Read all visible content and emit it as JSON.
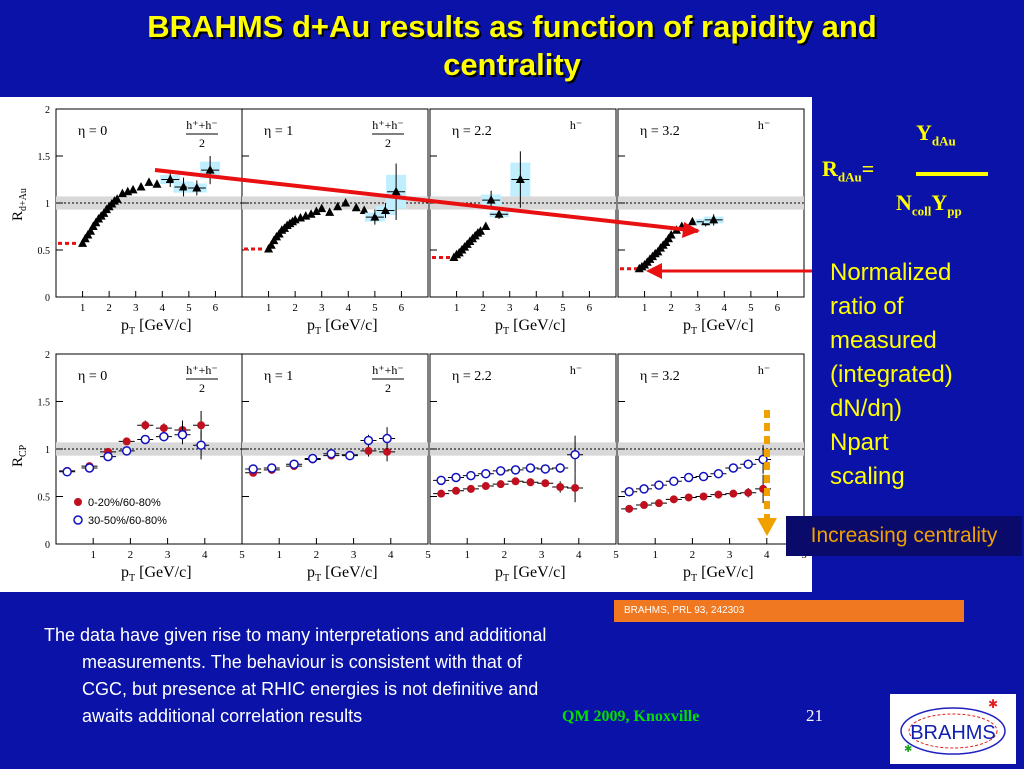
{
  "slide": {
    "title_line1": "BRAHMS d+Au results as function of rapidity and",
    "title_line2": "centrality",
    "formula": {
      "lhs": "R",
      "lhs_sub": "dAu",
      "equals": "=",
      "num": "Y",
      "num_sub": "dAu",
      "den1": "N",
      "den1_sub": "coll",
      "den2": "Y",
      "den2_sub": "pp"
    },
    "note_lines": [
      "Normalized",
      "ratio of",
      "measured",
      "(integrated)",
      "dN/dη)",
      "Npart",
      "scaling"
    ],
    "increasing": "Increasing centrality",
    "reference": "BRAHMS, PRL 93, 242303",
    "body_text": "The data have given rise to many  interpretations and additional measurements. The behaviour is consistent with that of CGC, but presence at RHIC energies is not definitive and awaits additional correlation results",
    "conference": "QM 2009, Knoxville",
    "page_number": "21",
    "logo_text": "BRAHMS"
  },
  "colors": {
    "background": "#0a12a8",
    "title": "#ffff00",
    "highlight": "#e81010",
    "arrow": "#f0a000",
    "central": "#c01020",
    "peripheral": "#1010c0",
    "band": "#bfefff"
  },
  "chart_data": [
    {
      "type": "scatter",
      "ylabel": "R",
      "ylabel_sub": "d+Au",
      "xlabel": "p",
      "xlabel_sub": "T",
      "xlabel_unit": "[GeV/c]",
      "xlim": [
        0,
        7
      ],
      "ylim": [
        0,
        2
      ],
      "xticks": [
        1,
        2,
        3,
        4,
        5,
        6
      ],
      "yticks": [
        0,
        0.5,
        1,
        1.5,
        2
      ],
      "panels": [
        {
          "eta": "η = 0",
          "species_num": "h⁺+h⁻",
          "species_den": "2",
          "norm_err": 0.03,
          "points": [
            [
              1.0,
              0.57
            ],
            [
              1.1,
              0.62
            ],
            [
              1.2,
              0.66
            ],
            [
              1.3,
              0.7
            ],
            [
              1.4,
              0.75
            ],
            [
              1.5,
              0.79
            ],
            [
              1.6,
              0.83
            ],
            [
              1.7,
              0.86
            ],
            [
              1.8,
              0.89
            ],
            [
              1.9,
              0.93
            ],
            [
              2.0,
              0.96
            ],
            [
              2.1,
              0.99
            ],
            [
              2.2,
              1.02
            ],
            [
              2.3,
              1.04
            ],
            [
              2.5,
              1.1
            ],
            [
              2.7,
              1.12
            ],
            [
              2.9,
              1.14
            ],
            [
              3.2,
              1.17
            ],
            [
              3.5,
              1.22
            ],
            [
              3.8,
              1.2
            ],
            [
              4.3,
              1.25
            ],
            [
              4.8,
              1.17
            ],
            [
              5.3,
              1.16
            ],
            [
              5.8,
              1.35
            ]
          ],
          "errors": [
            0,
            0,
            0,
            0,
            0,
            0,
            0,
            0,
            0,
            0,
            0,
            0,
            0,
            0,
            0,
            0,
            0,
            0,
            0,
            0,
            0.08,
            0.1,
            0.08,
            0.15
          ]
        },
        {
          "eta": "η = 1",
          "species_num": "h⁺+h⁻",
          "species_den": "2",
          "norm_err": 0.03,
          "points": [
            [
              1.0,
              0.51
            ],
            [
              1.1,
              0.55
            ],
            [
              1.2,
              0.6
            ],
            [
              1.3,
              0.64
            ],
            [
              1.4,
              0.67
            ],
            [
              1.5,
              0.71
            ],
            [
              1.6,
              0.73
            ],
            [
              1.7,
              0.76
            ],
            [
              1.8,
              0.78
            ],
            [
              1.9,
              0.8
            ],
            [
              2.0,
              0.82
            ],
            [
              2.2,
              0.84
            ],
            [
              2.4,
              0.86
            ],
            [
              2.6,
              0.88
            ],
            [
              2.8,
              0.91
            ],
            [
              3.0,
              0.94
            ],
            [
              3.3,
              0.9
            ],
            [
              3.6,
              0.96
            ],
            [
              3.9,
              1.0
            ],
            [
              4.3,
              0.95
            ],
            [
              4.6,
              0.92
            ],
            [
              5.0,
              0.85
            ],
            [
              5.4,
              0.92
            ],
            [
              5.8,
              1.12
            ]
          ],
          "errors": [
            0,
            0,
            0,
            0,
            0,
            0,
            0,
            0,
            0,
            0,
            0,
            0,
            0,
            0,
            0,
            0,
            0,
            0,
            0,
            0,
            0,
            0.08,
            0.08,
            0.3
          ]
        },
        {
          "eta": "η = 2.2",
          "species_num": "h⁻",
          "species_den": "",
          "norm_err": 0.03,
          "points": [
            [
              0.9,
              0.42
            ],
            [
              1.0,
              0.45
            ],
            [
              1.1,
              0.47
            ],
            [
              1.2,
              0.5
            ],
            [
              1.3,
              0.53
            ],
            [
              1.4,
              0.56
            ],
            [
              1.5,
              0.59
            ],
            [
              1.6,
              0.62
            ],
            [
              1.7,
              0.65
            ],
            [
              1.8,
              0.68
            ],
            [
              1.9,
              0.7
            ],
            [
              2.1,
              0.75
            ],
            [
              2.3,
              1.03
            ],
            [
              2.6,
              0.88
            ],
            [
              3.4,
              1.25
            ]
          ],
          "errors": [
            0,
            0,
            0,
            0,
            0,
            0,
            0,
            0,
            0,
            0,
            0,
            0,
            0.1,
            0.05,
            0.3
          ]
        },
        {
          "eta": "η = 3.2",
          "species_num": "h⁻",
          "species_den": "",
          "norm_err": 0.03,
          "points": [
            [
              0.8,
              0.3
            ],
            [
              0.9,
              0.32
            ],
            [
              1.0,
              0.34
            ],
            [
              1.1,
              0.37
            ],
            [
              1.2,
              0.4
            ],
            [
              1.3,
              0.43
            ],
            [
              1.4,
              0.46
            ],
            [
              1.5,
              0.48
            ],
            [
              1.6,
              0.52
            ],
            [
              1.7,
              0.55
            ],
            [
              1.8,
              0.58
            ],
            [
              1.9,
              0.62
            ],
            [
              2.0,
              0.66
            ],
            [
              2.2,
              0.71
            ],
            [
              2.4,
              0.75
            ],
            [
              2.8,
              0.8
            ],
            [
              3.3,
              0.8
            ],
            [
              3.6,
              0.82
            ]
          ],
          "errors": [
            0,
            0,
            0,
            0,
            0,
            0,
            0,
            0,
            0,
            0,
            0,
            0,
            0,
            0,
            0,
            0,
            0.05,
            0.06
          ]
        }
      ]
    },
    {
      "type": "scatter",
      "ylabel": "R",
      "ylabel_sub": "CP",
      "xlabel": "p",
      "xlabel_sub": "T",
      "xlabel_unit": "[GeV/c]",
      "xlim": [
        0,
        5
      ],
      "ylim": [
        0,
        2
      ],
      "xticks": [
        1,
        2,
        3,
        4,
        5
      ],
      "yticks": [
        0,
        0.5,
        1,
        1.5,
        2
      ],
      "legend": [
        "0-20%/60-80%",
        "30-50%/60-80%"
      ],
      "panels": [
        {
          "eta": "η = 0",
          "species_num": "h⁺+h⁻",
          "species_den": "2",
          "series": [
            {
              "name": "0-20%/60-80%",
              "values": [
                [
                  0.3,
                  0.77
                ],
                [
                  0.9,
                  0.82
                ],
                [
                  1.4,
                  0.97
                ],
                [
                  1.9,
                  1.08
                ],
                [
                  2.4,
                  1.25
                ],
                [
                  2.9,
                  1.22
                ],
                [
                  3.4,
                  1.2
                ],
                [
                  3.9,
                  1.25
                ]
              ],
              "errors": [
                0,
                0,
                0,
                0,
                0.05,
                0.05,
                0.1,
                0.15
              ]
            },
            {
              "name": "30-50%/60-80%",
              "values": [
                [
                  0.3,
                  0.76
                ],
                [
                  0.9,
                  0.8
                ],
                [
                  1.4,
                  0.92
                ],
                [
                  1.9,
                  0.98
                ],
                [
                  2.4,
                  1.1
                ],
                [
                  2.9,
                  1.13
                ],
                [
                  3.4,
                  1.15
                ],
                [
                  3.9,
                  1.04
                ]
              ],
              "errors": [
                0,
                0,
                0,
                0,
                0.04,
                0.05,
                0.1,
                0.15
              ]
            }
          ]
        },
        {
          "eta": "η = 1",
          "species_num": "h⁺+h⁻",
          "species_den": "2",
          "series": [
            {
              "name": "0-20%/60-80%",
              "values": [
                [
                  0.3,
                  0.75
                ],
                [
                  0.8,
                  0.78
                ],
                [
                  1.4,
                  0.82
                ],
                [
                  1.9,
                  0.89
                ],
                [
                  2.4,
                  0.93
                ],
                [
                  2.9,
                  0.94
                ],
                [
                  3.4,
                  0.98
                ],
                [
                  3.9,
                  0.97
                ]
              ],
              "errors": [
                0,
                0,
                0,
                0,
                0,
                0,
                0.06,
                0.1
              ]
            },
            {
              "name": "30-50%/60-80%",
              "values": [
                [
                  0.3,
                  0.79
                ],
                [
                  0.8,
                  0.8
                ],
                [
                  1.4,
                  0.84
                ],
                [
                  1.9,
                  0.9
                ],
                [
                  2.4,
                  0.95
                ],
                [
                  2.9,
                  0.93
                ],
                [
                  3.4,
                  1.09
                ],
                [
                  3.9,
                  1.11
                ]
              ],
              "errors": [
                0,
                0,
                0,
                0,
                0,
                0,
                0.06,
                0.12
              ]
            }
          ]
        },
        {
          "eta": "η = 2.2",
          "species_num": "h⁻",
          "species_den": "",
          "series": [
            {
              "name": "0-20%/60-80%",
              "values": [
                [
                  0.3,
                  0.53
                ],
                [
                  0.7,
                  0.56
                ],
                [
                  1.1,
                  0.58
                ],
                [
                  1.5,
                  0.61
                ],
                [
                  1.9,
                  0.63
                ],
                [
                  2.3,
                  0.66
                ],
                [
                  2.7,
                  0.65
                ],
                [
                  3.1,
                  0.64
                ],
                [
                  3.5,
                  0.6
                ],
                [
                  3.9,
                  0.59
                ]
              ],
              "errors": [
                0,
                0,
                0,
                0,
                0,
                0,
                0,
                0,
                0.06,
                0.15
              ]
            },
            {
              "name": "30-50%/60-80%",
              "values": [
                [
                  0.3,
                  0.67
                ],
                [
                  0.7,
                  0.7
                ],
                [
                  1.1,
                  0.72
                ],
                [
                  1.5,
                  0.74
                ],
                [
                  1.9,
                  0.77
                ],
                [
                  2.3,
                  0.78
                ],
                [
                  2.7,
                  0.8
                ],
                [
                  3.1,
                  0.79
                ],
                [
                  3.5,
                  0.8
                ],
                [
                  3.9,
                  0.94
                ]
              ],
              "errors": [
                0,
                0,
                0,
                0,
                0,
                0,
                0,
                0,
                0.05,
                0.2
              ]
            }
          ]
        },
        {
          "eta": "η = 3.2",
          "species_num": "h⁻",
          "species_den": "",
          "series": [
            {
              "name": "0-20%/60-80%",
              "values": [
                [
                  0.3,
                  0.37
                ],
                [
                  0.7,
                  0.41
                ],
                [
                  1.1,
                  0.43
                ],
                [
                  1.5,
                  0.47
                ],
                [
                  1.9,
                  0.49
                ],
                [
                  2.3,
                  0.5
                ],
                [
                  2.7,
                  0.52
                ],
                [
                  3.1,
                  0.53
                ],
                [
                  3.5,
                  0.54
                ],
                [
                  3.9,
                  0.58
                ]
              ],
              "errors": [
                0,
                0,
                0,
                0,
                0,
                0,
                0,
                0,
                0.05,
                0.15
              ]
            },
            {
              "name": "30-50%/60-80%",
              "values": [
                [
                  0.3,
                  0.55
                ],
                [
                  0.7,
                  0.58
                ],
                [
                  1.1,
                  0.62
                ],
                [
                  1.5,
                  0.66
                ],
                [
                  1.9,
                  0.7
                ],
                [
                  2.3,
                  0.71
                ],
                [
                  2.7,
                  0.74
                ],
                [
                  3.1,
                  0.8
                ],
                [
                  3.5,
                  0.84
                ],
                [
                  3.9,
                  0.89
                ]
              ],
              "errors": [
                0,
                0,
                0,
                0,
                0,
                0,
                0,
                0,
                0.05,
                0.15
              ]
            }
          ]
        }
      ]
    }
  ]
}
